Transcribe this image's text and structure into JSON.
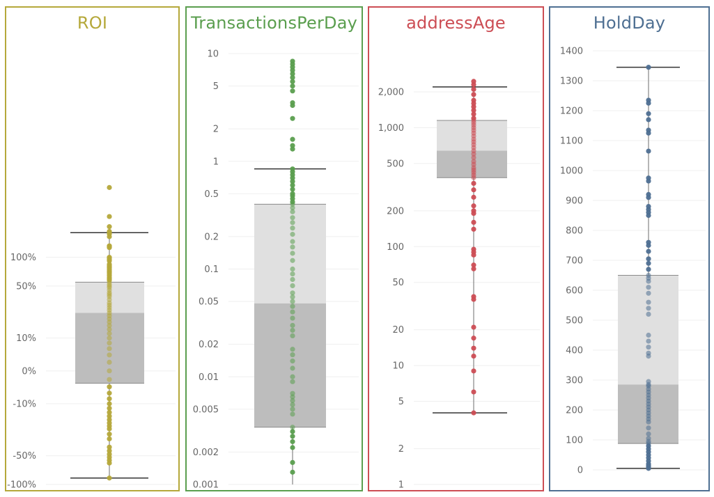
{
  "chart_data": [
    {
      "type": "box",
      "title": "ROI",
      "color": "#b5a83a",
      "scale": "symlog",
      "ylim": [
        -100,
        160
      ],
      "ticks": [
        {
          "value": -100,
          "label": "-100%"
        },
        {
          "value": -50,
          "label": "-50%"
        },
        {
          "value": -10,
          "label": "-10%"
        },
        {
          "value": 0,
          "label": "0%"
        },
        {
          "value": 10,
          "label": "10%"
        },
        {
          "value": 50,
          "label": "50%"
        },
        {
          "value": 100,
          "label": "100%"
        }
      ],
      "box": {
        "whisker_low": -86,
        "q1": -3,
        "median": 24,
        "q3": 55,
        "whisker_high": 175
      },
      "points": [
        470,
        250,
        200,
        180,
        175,
        170,
        160,
        130,
        128,
        125,
        100,
        98,
        95,
        92,
        85,
        82,
        80,
        78,
        75,
        72,
        70,
        68,
        65,
        62,
        60,
        58,
        55,
        52,
        50,
        48,
        45,
        42,
        40,
        38,
        35,
        32,
        30,
        28,
        26,
        24,
        22,
        20,
        18,
        16,
        14,
        12,
        10,
        8,
        6,
        4,
        2,
        0,
        -2,
        -4,
        -6,
        -8,
        -10,
        -12,
        -14,
        -16,
        -18,
        -20,
        -22,
        -24,
        -28,
        -32,
        -40,
        -44,
        -48,
        -52,
        -56,
        -60,
        -86
      ]
    },
    {
      "type": "box",
      "title": "TransactionsPerDay",
      "color": "#5a9e4e",
      "scale": "log",
      "ylim": [
        0.001,
        10
      ],
      "ticks": [
        {
          "value": 10,
          "label": "10"
        },
        {
          "value": 5,
          "label": "5"
        },
        {
          "value": 2,
          "label": "2"
        },
        {
          "value": 1,
          "label": "1"
        },
        {
          "value": 0.5,
          "label": "0.5"
        },
        {
          "value": 0.2,
          "label": "0.2"
        },
        {
          "value": 0.1,
          "label": "0.1"
        },
        {
          "value": 0.05,
          "label": "0.05"
        },
        {
          "value": 0.02,
          "label": "0.02"
        },
        {
          "value": 0.01,
          "label": "0.01"
        },
        {
          "value": 0.005,
          "label": "0.005"
        },
        {
          "value": 0.002,
          "label": "0.002"
        },
        {
          "value": 0.001,
          "label": "0.001"
        }
      ],
      "box": {
        "whisker_low": 0.001,
        "q1": 0.0034,
        "median": 0.048,
        "q3": 0.4,
        "whisker_high": 0.85
      },
      "points": [
        8.5,
        8.0,
        7.5,
        7.0,
        6.5,
        6.0,
        5.5,
        5.0,
        4.5,
        3.5,
        3.3,
        2.5,
        1.6,
        1.4,
        1.3,
        0.85,
        0.8,
        0.75,
        0.7,
        0.65,
        0.6,
        0.55,
        0.5,
        0.48,
        0.45,
        0.42,
        0.4,
        0.37,
        0.34,
        0.3,
        0.27,
        0.24,
        0.21,
        0.18,
        0.16,
        0.14,
        0.12,
        0.1,
        0.09,
        0.08,
        0.07,
        0.06,
        0.055,
        0.05,
        0.045,
        0.04,
        0.035,
        0.03,
        0.027,
        0.024,
        0.018,
        0.016,
        0.014,
        0.012,
        0.01,
        0.009,
        0.007,
        0.0065,
        0.006,
        0.0055,
        0.005,
        0.0045,
        0.0034,
        0.0031,
        0.0028,
        0.0025,
        0.0022,
        0.0016,
        0.0013
      ]
    },
    {
      "type": "box",
      "title": "addressAge",
      "color": "#cc4d54",
      "scale": "log",
      "ylim": [
        1,
        2800
      ],
      "ticks": [
        {
          "value": 2000,
          "label": "2,000"
        },
        {
          "value": 1000,
          "label": "1,000"
        },
        {
          "value": 500,
          "label": "500"
        },
        {
          "value": 200,
          "label": "200"
        },
        {
          "value": 100,
          "label": "100"
        },
        {
          "value": 50,
          "label": "50"
        },
        {
          "value": 20,
          "label": "20"
        },
        {
          "value": 10,
          "label": "10"
        },
        {
          "value": 5,
          "label": "5"
        },
        {
          "value": 2,
          "label": "2"
        },
        {
          "value": 1,
          "label": "1"
        }
      ],
      "box": {
        "whisker_low": 4,
        "q1": 380,
        "median": 640,
        "q3": 1150,
        "whisker_high": 2200
      },
      "points": [
        2450,
        2300,
        2100,
        1900,
        1700,
        1600,
        1500,
        1400,
        1300,
        1200,
        1150,
        1100,
        1050,
        1000,
        950,
        900,
        850,
        800,
        760,
        720,
        680,
        640,
        600,
        560,
        520,
        490,
        460,
        440,
        420,
        400,
        380,
        340,
        300,
        260,
        220,
        200,
        190,
        160,
        140,
        95,
        90,
        85,
        70,
        65,
        38,
        36,
        21,
        17,
        14,
        12,
        9,
        6,
        4
      ]
    },
    {
      "type": "box",
      "title": "HoldDay",
      "color": "#4e6f92",
      "scale": "linear",
      "ylim": [
        0,
        1400
      ],
      "ticks": [
        {
          "value": 1400,
          "label": "1400"
        },
        {
          "value": 1300,
          "label": "1300"
        },
        {
          "value": 1200,
          "label": "1200"
        },
        {
          "value": 1100,
          "label": "1100"
        },
        {
          "value": 1000,
          "label": "1000"
        },
        {
          "value": 900,
          "label": "900"
        },
        {
          "value": 800,
          "label": "800"
        },
        {
          "value": 700,
          "label": "700"
        },
        {
          "value": 600,
          "label": "600"
        },
        {
          "value": 500,
          "label": "500"
        },
        {
          "value": 400,
          "label": "400"
        },
        {
          "value": 300,
          "label": "300"
        },
        {
          "value": 200,
          "label": "200"
        },
        {
          "value": 100,
          "label": "100"
        },
        {
          "value": 0,
          "label": "0"
        }
      ],
      "box": {
        "whisker_low": 5,
        "q1": 88,
        "median": 285,
        "q3": 650,
        "whisker_high": 1345
      },
      "points": [
        1345,
        1235,
        1225,
        1190,
        1170,
        1135,
        1125,
        1065,
        975,
        965,
        920,
        910,
        880,
        870,
        860,
        850,
        760,
        750,
        730,
        705,
        690,
        670,
        650,
        640,
        630,
        610,
        590,
        560,
        540,
        520,
        450,
        430,
        410,
        390,
        380,
        295,
        285,
        280,
        270,
        260,
        250,
        240,
        230,
        220,
        210,
        200,
        190,
        180,
        170,
        160,
        140,
        120,
        105,
        95,
        88,
        80,
        70,
        60,
        50,
        40,
        30,
        20,
        15,
        10,
        5
      ]
    }
  ]
}
